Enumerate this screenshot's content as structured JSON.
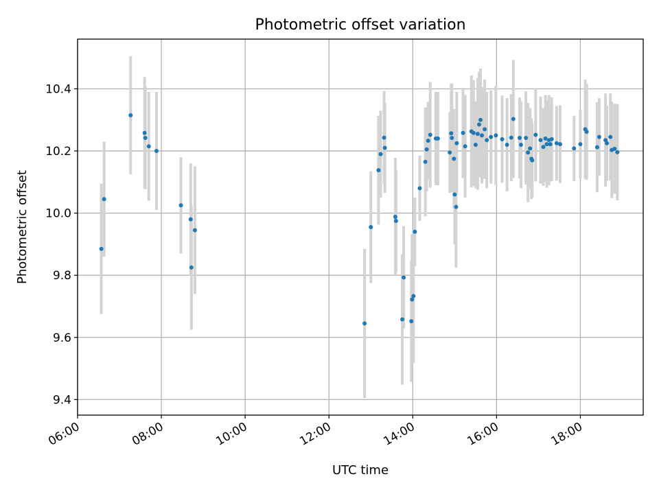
{
  "chart_data": {
    "type": "scatter",
    "title": "Photometric offset variation",
    "xlabel": "UTC time",
    "ylabel": "Photometric offset",
    "xlim": [
      "06:00",
      "19:30"
    ],
    "ylim": [
      9.35,
      10.56
    ],
    "xticks": [
      "06:00",
      "08:00",
      "10:00",
      "12:00",
      "14:00",
      "16:00",
      "18:00"
    ],
    "yticks": [
      9.4,
      9.6,
      9.8,
      10.0,
      10.2,
      10.4
    ],
    "ytick_labels": [
      "9.4",
      "9.6",
      "9.8",
      "10.0",
      "10.2",
      "10.4"
    ],
    "grid": true,
    "colors": {
      "point": "#1f77b4",
      "errorbar": "#d3d3d3",
      "grid": "#b0b0b0"
    },
    "series": [
      {
        "x": [
          "06:34",
          "06:38",
          "07:16",
          "07:36",
          "07:37",
          "07:42",
          "07:53",
          "08:28",
          "08:42",
          "08:43",
          "08:48",
          "12:51",
          "13:00",
          "13:11",
          "13:14",
          "13:19",
          "13:20",
          "13:35",
          "13:36",
          "13:45",
          "13:47",
          "13:58",
          "13:59",
          "14:01",
          "14:03",
          "14:10",
          "14:18",
          "14:20",
          "14:22",
          "14:25",
          "14:33",
          "14:36",
          "14:53",
          "14:55",
          "14:56",
          "14:59",
          "15:00",
          "15:02",
          "15:03",
          "15:12",
          "15:15",
          "15:24",
          "15:27",
          "15:30",
          "15:33",
          "15:35",
          "15:37",
          "15:39",
          "15:43",
          "15:46",
          "15:52",
          "15:59",
          "16:08",
          "16:15",
          "16:21",
          "16:24",
          "16:33",
          "16:35",
          "16:42",
          "16:45",
          "16:48",
          "16:50",
          "16:51",
          "16:56",
          "17:03",
          "17:07",
          "17:10",
          "17:12",
          "17:15",
          "17:17",
          "17:19",
          "17:26",
          "17:31",
          "17:51",
          "18:00",
          "18:07",
          "18:09",
          "18:24",
          "18:27",
          "18:36",
          "18:38",
          "18:43",
          "18:45",
          "18:49",
          "18:53"
        ],
        "y": [
          9.885,
          10.045,
          10.315,
          10.258,
          10.242,
          10.215,
          10.2,
          10.025,
          9.98,
          9.825,
          9.945,
          9.645,
          9.955,
          10.138,
          10.19,
          10.243,
          10.21,
          9.988,
          9.975,
          9.658,
          9.793,
          9.652,
          9.722,
          9.733,
          9.94,
          10.08,
          10.165,
          10.205,
          10.233,
          10.252,
          10.24,
          10.24,
          10.195,
          10.257,
          10.242,
          10.175,
          10.06,
          10.02,
          10.225,
          10.258,
          10.215,
          10.263,
          10.258,
          10.22,
          10.255,
          10.285,
          10.3,
          10.25,
          10.27,
          10.235,
          10.245,
          10.25,
          10.238,
          10.22,
          10.243,
          10.303,
          10.242,
          10.22,
          10.242,
          10.195,
          10.208,
          10.175,
          10.17,
          10.252,
          10.235,
          10.213,
          10.24,
          10.222,
          10.235,
          10.222,
          10.238,
          10.225,
          10.222,
          10.208,
          10.222,
          10.27,
          10.262,
          10.212,
          10.245,
          10.235,
          10.225,
          10.245,
          10.203,
          10.207,
          10.196
        ],
        "err": [
          0.21,
          0.185,
          0.19,
          0.18,
          0.165,
          0.175,
          0.19,
          0.155,
          0.18,
          0.2,
          0.205,
          0.24,
          0.18,
          0.175,
          0.14,
          0.15,
          0.145,
          0.19,
          0.165,
          0.21,
          0.165,
          0.195,
          0.21,
          0.215,
          0.11,
          0.105,
          0.175,
          0.135,
          0.125,
          0.17,
          0.15,
          0.15,
          0.13,
          0.16,
          0.175,
          0.16,
          0.16,
          0.195,
          0.165,
          0.145,
          0.165,
          0.18,
          0.17,
          0.14,
          0.18,
          0.17,
          0.165,
          0.155,
          0.16,
          0.155,
          0.15,
          0.16,
          0.14,
          0.15,
          0.14,
          0.19,
          0.13,
          0.14,
          0.15,
          0.16,
          0.13,
          0.13,
          0.12,
          0.15,
          0.14,
          0.125,
          0.14,
          0.14,
          0.145,
          0.12,
          0.135,
          0.12,
          0.125,
          0.105,
          0.11,
          0.16,
          0.155,
          0.145,
          0.125,
          0.15,
          0.12,
          0.14,
          0.155,
          0.145,
          0.155
        ]
      }
    ]
  }
}
